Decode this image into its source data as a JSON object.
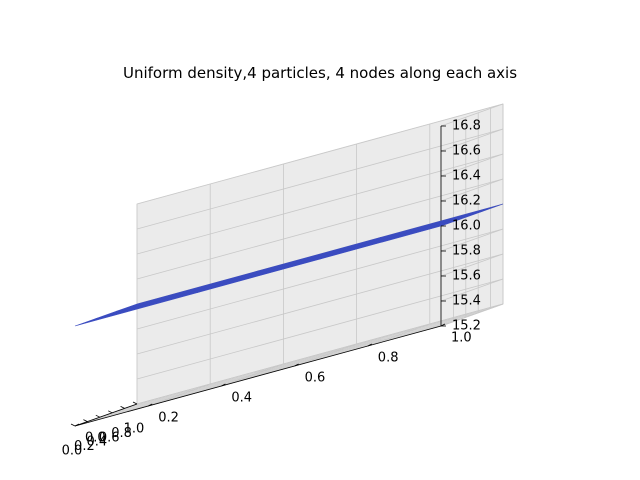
{
  "chart_data": {
    "type": "surface3d",
    "title": "Uniform density,4 particles, 4 nodes along each axis",
    "xlabel": "",
    "ylabel": "",
    "zlabel": "",
    "xlim": [
      0.0,
      1.0
    ],
    "ylim": [
      0.0,
      1.0
    ],
    "zlim": [
      15.2,
      16.8
    ],
    "x_ticks": [
      "0.0",
      "0.2",
      "0.4",
      "0.6",
      "0.8",
      "1.0"
    ],
    "y_ticks": [
      "0.0",
      "0.2",
      "0.4",
      "0.6",
      "0.8",
      "1.0"
    ],
    "z_ticks": [
      "15.2",
      "15.4",
      "15.6",
      "15.8",
      "16.0",
      "16.2",
      "16.4",
      "16.6",
      "16.8"
    ],
    "grid": true,
    "surface_color": "#3b4cc0",
    "surface": {
      "x": [
        0.0,
        0.3333,
        0.6667,
        1.0
      ],
      "y": [
        0.0,
        0.3333,
        0.6667,
        1.0
      ],
      "z": [
        [
          16.0,
          16.0,
          16.0,
          16.0
        ],
        [
          16.0,
          16.0,
          16.0,
          16.0
        ],
        [
          16.0,
          16.0,
          16.0,
          16.0
        ],
        [
          16.0,
          16.0,
          16.0,
          16.0
        ]
      ]
    }
  }
}
